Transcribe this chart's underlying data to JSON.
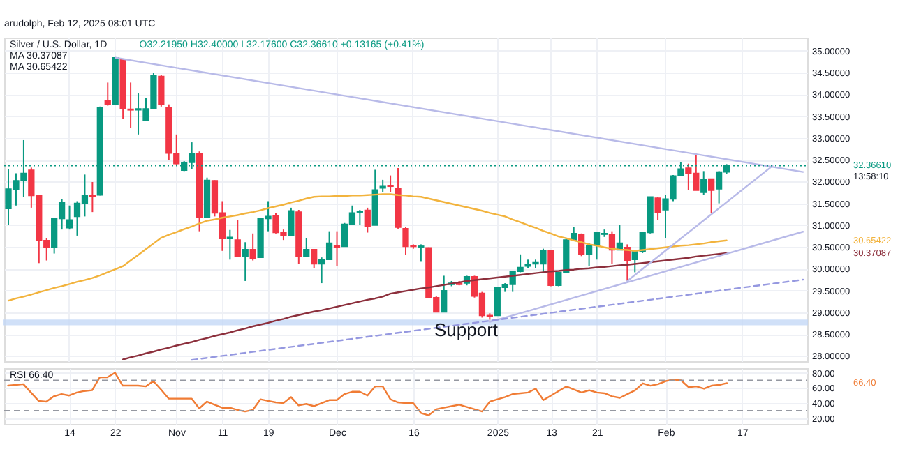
{
  "chart_data": [
    {
      "type": "candlestick",
      "title": "Silver / U.S. Dollar, 1D",
      "subtitle": "O32.21950 H32.40000 L32.17600 C32.36610 +0.13165 (+0.41%)",
      "categories": [
        null,
        null,
        null,
        null,
        null,
        null,
        null,
        null,
        null,
        null,
        null,
        null,
        null,
        null,
        null,
        null,
        null,
        null,
        null,
        null,
        null,
        null,
        null,
        null,
        null,
        null,
        null,
        null,
        null,
        null,
        null,
        null,
        null,
        null,
        null,
        null,
        null,
        null,
        null,
        null,
        null,
        null,
        null,
        null,
        null,
        null,
        null,
        null,
        null,
        null,
        null,
        null,
        null,
        null,
        null,
        null,
        null,
        null,
        null,
        null,
        null,
        null,
        null,
        null,
        null,
        null,
        null,
        null,
        null,
        null,
        null,
        null,
        null,
        null,
        null,
        null,
        null,
        null,
        null,
        null,
        null,
        null,
        null,
        null,
        null,
        null,
        null,
        null,
        null,
        null,
        null,
        null,
        null,
        null,
        null,
        null,
        null,
        null,
        null,
        null,
        null,
        null,
        null,
        null,
        null
      ],
      "ohlc": [
        [
          31.38,
          32.29,
          31.0,
          31.83
        ],
        [
          31.81,
          32.19,
          31.45,
          32.02
        ],
        [
          32.02,
          32.95,
          31.65,
          32.19
        ],
        [
          32.26,
          32.32,
          31.4,
          31.68
        ],
        [
          31.68,
          31.7,
          30.13,
          30.65
        ],
        [
          30.65,
          30.71,
          30.19,
          30.49
        ],
        [
          30.49,
          31.17,
          30.35,
          31.15
        ],
        [
          31.15,
          31.6,
          30.9,
          31.52
        ],
        [
          30.94,
          31.45,
          30.9,
          31.12
        ],
        [
          31.2,
          31.55,
          30.76,
          31.5
        ],
        [
          31.5,
          32.16,
          31.2,
          31.68
        ],
        [
          31.68,
          31.99,
          31.3,
          31.65
        ],
        [
          31.69,
          33.72,
          31.68,
          33.7
        ],
        [
          33.86,
          34.27,
          33.74,
          33.76
        ],
        [
          33.77,
          34.84,
          33.75,
          34.84
        ],
        [
          34.79,
          34.81,
          33.43,
          33.67
        ],
        [
          33.66,
          34.27,
          33.23,
          33.64
        ],
        [
          33.64,
          34.02,
          33.08,
          33.67
        ],
        [
          33.4,
          33.92,
          33.4,
          33.67
        ],
        [
          33.67,
          34.49,
          33.67,
          34.44
        ],
        [
          34.41,
          34.45,
          33.72,
          33.77
        ],
        [
          33.7,
          33.77,
          32.49,
          32.65
        ],
        [
          32.65,
          33.08,
          32.39,
          32.41
        ],
        [
          32.26,
          32.47,
          32.24,
          32.44
        ],
        [
          32.44,
          32.9,
          32.29,
          32.64
        ],
        [
          32.64,
          32.69,
          30.86,
          31.17
        ],
        [
          31.17,
          32.09,
          31.17,
          32.03
        ],
        [
          32.02,
          32.03,
          31.2,
          31.28
        ],
        [
          31.28,
          31.55,
          30.41,
          30.69
        ],
        [
          30.69,
          30.89,
          30.21,
          30.72
        ],
        [
          30.66,
          31.12,
          30.29,
          30.29
        ],
        [
          30.29,
          30.61,
          29.72,
          30.44
        ],
        [
          30.44,
          30.81,
          30.19,
          30.24
        ],
        [
          30.26,
          31.15,
          30.26,
          31.15
        ],
        [
          31.15,
          31.55,
          30.86,
          31.2
        ],
        [
          31.22,
          31.27,
          30.81,
          30.83
        ],
        [
          30.83,
          30.9,
          30.66,
          30.76
        ],
        [
          30.76,
          31.4,
          30.76,
          31.33
        ],
        [
          31.3,
          31.35,
          30.11,
          30.29
        ],
        [
          30.29,
          30.71,
          30.29,
          30.44
        ],
        [
          30.44,
          30.44,
          30.01,
          30.11
        ],
        [
          30.11,
          30.26,
          29.67,
          30.21
        ],
        [
          30.21,
          30.86,
          30.21,
          30.59
        ],
        [
          30.53,
          30.86,
          30.06,
          30.5
        ],
        [
          30.51,
          31.05,
          30.51,
          31.02
        ],
        [
          31.02,
          31.45,
          31.02,
          31.28
        ],
        [
          31.3,
          31.35,
          31.0,
          31.32
        ],
        [
          31.34,
          31.4,
          30.83,
          30.98
        ],
        [
          31.0,
          32.27,
          31.0,
          31.81
        ],
        [
          31.85,
          32.04,
          31.75,
          31.89
        ],
        [
          31.91,
          32.14,
          31.75,
          31.89
        ],
        [
          31.84,
          32.31,
          30.92,
          30.95
        ],
        [
          30.92,
          30.95,
          30.31,
          30.51
        ],
        [
          30.53,
          30.56,
          30.46,
          30.51
        ],
        [
          30.5,
          30.56,
          30.16,
          30.52
        ],
        [
          30.48,
          30.49,
          29.32,
          29.34
        ],
        [
          29.34,
          29.37,
          29.01,
          29.01
        ],
        [
          29.01,
          29.84,
          29.01,
          29.5
        ],
        [
          29.64,
          29.72,
          29.6,
          29.67
        ],
        [
          29.67,
          29.72,
          29.62,
          29.64
        ],
        [
          29.67,
          29.84,
          29.62,
          29.82
        ],
        [
          29.82,
          29.84,
          29.34,
          29.37
        ],
        [
          29.44,
          29.47,
          28.88,
          28.93
        ],
        [
          28.93,
          28.98,
          28.78,
          28.91
        ],
        [
          28.93,
          29.59,
          28.93,
          29.57
        ],
        [
          29.57,
          29.67,
          29.47,
          29.64
        ],
        [
          29.64,
          29.94,
          29.47,
          29.94
        ],
        [
          29.94,
          30.33,
          29.92,
          30.03
        ],
        [
          30.06,
          30.21,
          30.01,
          30.09
        ],
        [
          30.11,
          30.21,
          30.01,
          30.14
        ],
        [
          30.11,
          30.46,
          29.92,
          30.41
        ],
        [
          30.41,
          30.41,
          29.6,
          29.62
        ],
        [
          29.62,
          29.92,
          29.6,
          29.92
        ],
        [
          29.92,
          30.71,
          29.9,
          30.66
        ],
        [
          30.66,
          30.95,
          30.63,
          30.81
        ],
        [
          30.79,
          30.81,
          30.29,
          30.33
        ],
        [
          30.33,
          30.59,
          30.06,
          30.53
        ],
        [
          30.53,
          30.83,
          30.21,
          30.83
        ],
        [
          30.79,
          30.9,
          30.73,
          30.81
        ],
        [
          30.79,
          30.86,
          30.11,
          30.43
        ],
        [
          30.43,
          31.0,
          30.43,
          30.59
        ],
        [
          30.49,
          30.56,
          29.72,
          30.19
        ],
        [
          30.21,
          30.39,
          29.92,
          30.39
        ],
        [
          30.39,
          30.83,
          30.36,
          30.83
        ],
        [
          30.83,
          31.65,
          30.81,
          31.65
        ],
        [
          31.62,
          31.65,
          31.12,
          31.3
        ],
        [
          31.35,
          31.7,
          30.71,
          31.6
        ],
        [
          31.6,
          32.15,
          31.55,
          32.13
        ],
        [
          32.14,
          32.44,
          32.14,
          32.29
        ],
        [
          32.31,
          32.41,
          31.8,
          32.19
        ],
        [
          32.19,
          32.64,
          31.8,
          31.8
        ],
        [
          31.75,
          32.24,
          31.7,
          32.04
        ],
        [
          32.06,
          32.06,
          31.28,
          31.8
        ],
        [
          31.83,
          32.24,
          31.5,
          32.22
        ],
        [
          32.2195,
          32.4,
          32.176,
          32.3661
        ],
        null,
        null,
        null,
        null,
        null,
        null,
        null,
        null,
        null,
        null
      ],
      "colors": [
        "#089981",
        "#089981",
        "#089981",
        "#f23645",
        "#f23645",
        "#f23645",
        "#089981",
        "#089981",
        "#089981",
        "#089981",
        "#089981",
        "#f23645",
        "#089981",
        "#f23645",
        "#089981",
        "#f23645",
        "#f23645",
        "#089981",
        "#089981",
        "#089981",
        "#f23645",
        "#f23645",
        "#f23645",
        "#089981",
        "#089981",
        "#f23645",
        "#089981",
        "#f23645",
        "#f23645",
        "#089981",
        "#f23645",
        "#089981",
        "#f23645",
        "#089981",
        "#089981",
        "#f23645",
        "#f23645",
        "#089981",
        "#f23645",
        "#089981",
        "#f23645",
        "#089981",
        "#089981",
        "#f23645",
        "#089981",
        "#089981",
        "#089981",
        "#f23645",
        "#089981",
        "#089981",
        "#f23645",
        "#f23645",
        "#f23645",
        "#f23645",
        "#089981",
        "#f23645",
        "#f23645",
        "#089981",
        "#089981",
        "#f23645",
        "#089981",
        "#f23645",
        "#f23645",
        "#f23645",
        "#089981",
        "#089981",
        "#089981",
        "#089981",
        "#089981",
        "#089981",
        "#089981",
        "#f23645",
        "#089981",
        "#089981",
        "#089981",
        "#f23645",
        "#089981",
        "#089981",
        "#089981",
        "#f23645",
        "#089981",
        "#f23645",
        "#089981",
        "#089981",
        "#089981",
        "#f23645",
        "#089981",
        "#089981",
        "#089981",
        "#f23645",
        "#f23645",
        "#089981",
        "#f23645",
        "#089981",
        "#089981",
        null,
        null,
        null,
        null,
        null,
        null,
        null,
        null,
        null,
        null
      ],
      "series": [
        {
          "type": "line",
          "color": "#8c2f3c",
          "values": [
            null,
            null,
            null,
            null,
            null,
            null,
            null,
            null,
            null,
            null,
            null,
            null,
            null,
            null,
            null,
            27.92,
            27.97,
            28.01,
            28.06,
            28.1,
            28.15,
            28.19,
            28.24,
            28.28,
            28.32,
            28.37,
            28.41,
            28.46,
            28.5,
            28.54,
            28.59,
            28.63,
            28.68,
            28.72,
            28.76,
            28.81,
            28.85,
            28.9,
            28.94,
            28.98,
            29.02,
            29.05,
            29.09,
            29.13,
            29.17,
            29.21,
            29.25,
            29.29,
            29.32,
            29.36,
            29.43,
            29.46,
            29.49,
            29.52,
            29.55,
            29.57,
            29.6,
            29.63,
            29.66,
            29.69,
            29.72,
            29.74,
            29.76,
            29.78,
            29.8,
            29.82,
            29.84,
            29.86,
            29.88,
            29.9,
            29.92,
            29.94,
            29.95,
            29.97,
            29.98,
            30.0,
            30.01,
            30.03,
            30.04,
            30.06,
            30.08,
            30.09,
            30.11,
            30.13,
            30.15,
            30.17,
            30.19,
            30.21,
            30.23,
            30.25,
            30.28,
            30.3,
            30.32,
            30.34,
            30.36,
            null,
            null,
            null,
            null,
            null,
            null,
            null,
            null,
            null,
            null
          ]
        },
        {
          "type": "line",
          "color": "#f2b33d",
          "values": [
            29.27,
            29.32,
            29.36,
            29.41,
            29.46,
            29.51,
            29.56,
            29.6,
            29.65,
            29.7,
            29.74,
            29.79,
            29.85,
            29.92,
            29.99,
            30.06,
            30.19,
            30.32,
            30.45,
            30.58,
            30.71,
            30.78,
            30.84,
            30.91,
            30.97,
            31.04,
            31.1,
            31.13,
            31.17,
            31.2,
            31.23,
            31.27,
            31.3,
            31.34,
            31.39,
            31.43,
            31.47,
            31.52,
            31.56,
            31.61,
            31.65,
            31.66,
            31.66,
            31.67,
            31.67,
            31.68,
            31.68,
            31.69,
            31.7,
            31.71,
            31.71,
            31.69,
            31.68,
            31.66,
            31.65,
            31.61,
            31.57,
            31.53,
            31.49,
            31.45,
            31.41,
            31.37,
            31.33,
            31.28,
            31.24,
            31.2,
            31.13,
            31.07,
            31.0,
            30.94,
            30.87,
            30.81,
            30.74,
            30.7,
            30.65,
            30.61,
            30.56,
            30.53,
            30.49,
            30.46,
            30.44,
            30.43,
            30.41,
            30.43,
            30.45,
            30.47,
            30.49,
            30.51,
            30.53,
            30.54,
            30.56,
            30.58,
            30.61,
            30.63,
            30.65,
            null,
            null,
            null,
            null,
            null,
            null,
            null,
            null,
            null,
            null
          ]
        },
        {
          "type": "line",
          "color": "#b8bae8",
          "values": [
            null,
            null,
            null,
            null,
            null,
            null,
            null,
            null,
            null,
            null,
            null,
            null,
            null,
            null,
            34.84,
            null,
            null,
            null,
            null,
            null,
            null,
            null,
            null,
            null,
            null,
            null,
            null,
            null,
            null,
            null,
            null,
            null,
            null,
            null,
            null,
            null,
            null,
            null,
            null,
            null,
            null,
            null,
            null,
            null,
            null,
            null,
            null,
            null,
            null,
            null,
            null,
            null,
            null,
            null,
            null,
            null,
            null,
            null,
            null,
            null,
            null,
            null,
            null,
            null,
            null,
            null,
            null,
            null,
            null,
            null,
            null,
            null,
            null,
            null,
            null,
            null,
            null,
            null,
            null,
            null,
            null,
            null,
            null,
            null,
            null,
            null,
            null,
            null,
            null,
            null,
            null,
            null,
            null,
            null,
            null,
            null,
            null,
            null,
            null,
            null,
            null,
            null,
            null,
            null,
            32.22
          ]
        },
        {
          "type": "line",
          "color": "#b8bae8",
          "values": [
            null,
            null,
            null,
            null,
            null,
            null,
            null,
            null,
            null,
            null,
            null,
            null,
            null,
            null,
            null,
            null,
            null,
            null,
            null,
            null,
            null,
            null,
            null,
            null,
            null,
            null,
            null,
            null,
            null,
            null,
            null,
            null,
            null,
            null,
            null,
            null,
            null,
            null,
            null,
            null,
            null,
            null,
            null,
            null,
            null,
            null,
            null,
            null,
            null,
            null,
            null,
            null,
            null,
            null,
            null,
            null,
            null,
            null,
            null,
            null,
            null,
            null,
            null,
            null,
            null,
            null,
            null,
            null,
            null,
            null,
            null,
            null,
            null,
            null,
            null,
            null,
            null,
            null,
            null,
            null,
            null,
            29.72,
            null,
            null,
            null,
            null,
            null,
            null,
            null,
            null,
            null,
            null,
            null,
            null,
            null,
            null,
            null,
            null,
            null,
            null,
            32.36,
            null,
            null,
            null,
            null
          ]
        },
        {
          "type": "line",
          "color": "#b8bae8",
          "values": [
            null,
            null,
            null,
            null,
            null,
            null,
            null,
            null,
            null,
            null,
            null,
            null,
            null,
            null,
            null,
            null,
            null,
            null,
            null,
            null,
            null,
            null,
            null,
            null,
            null,
            null,
            null,
            null,
            null,
            null,
            null,
            null,
            null,
            null,
            null,
            null,
            null,
            null,
            null,
            null,
            null,
            null,
            null,
            null,
            null,
            null,
            null,
            null,
            null,
            null,
            null,
            null,
            null,
            null,
            null,
            null,
            null,
            null,
            null,
            null,
            null,
            null,
            null,
            28.78,
            null,
            null,
            null,
            null,
            null,
            null,
            null,
            null,
            null,
            null,
            null,
            null,
            null,
            null,
            null,
            null,
            null,
            null,
            null,
            null,
            null,
            null,
            null,
            null,
            null,
            null,
            null,
            null,
            null,
            null,
            null,
            null,
            null,
            null,
            null,
            null,
            null,
            null,
            null,
            null,
            30.85
          ]
        },
        {
          "type": "line",
          "color": "#9598e0",
          "line_style": "dashed",
          "values": [
            null,
            null,
            null,
            null,
            null,
            null,
            null,
            null,
            null,
            null,
            null,
            null,
            null,
            null,
            null,
            null,
            null,
            null,
            null,
            null,
            null,
            null,
            null,
            null,
            27.91,
            null,
            null,
            null,
            null,
            null,
            null,
            null,
            null,
            null,
            null,
            null,
            null,
            null,
            null,
            null,
            null,
            null,
            null,
            null,
            null,
            null,
            null,
            null,
            null,
            null,
            null,
            null,
            null,
            null,
            null,
            null,
            null,
            null,
            null,
            null,
            null,
            null,
            null,
            null,
            null,
            null,
            null,
            null,
            null,
            null,
            null,
            null,
            null,
            null,
            null,
            null,
            null,
            null,
            null,
            null,
            null,
            null,
            null,
            null,
            null,
            null,
            null,
            null,
            null,
            null,
            null,
            null,
            null,
            null,
            null,
            null,
            null,
            null,
            null,
            null,
            null,
            null,
            null,
            null,
            29.75
          ]
        }
      ],
      "ylim": [
        27.88,
        35.3
      ],
      "yticks": [
        {
          "value": 28,
          "label": "28.00000"
        },
        {
          "value": 28.5,
          "label": "28.50000"
        },
        {
          "value": 29,
          "label": "29.00000"
        },
        {
          "value": 29.5,
          "label": "29.50000"
        },
        {
          "value": 30,
          "label": "30.00000"
        },
        {
          "value": 30.5,
          "label": "30.50000"
        },
        {
          "value": 31,
          "label": "31.00000"
        },
        {
          "value": 31.5,
          "label": "31.50000"
        },
        {
          "value": 32,
          "label": "32.00000"
        },
        {
          "value": 32.5,
          "label": "32.50000"
        },
        {
          "value": 33,
          "label": "33.00000"
        },
        {
          "value": 33.5,
          "label": "33.50000"
        },
        {
          "value": 34,
          "label": "34.00000"
        },
        {
          "value": 34.5,
          "label": "34.50000"
        },
        {
          "value": 35,
          "label": "35.00000"
        }
      ],
      "bands": [
        {
          "axis": "y",
          "from": 28.72,
          "to": 28.82,
          "color": "#c5d9f7"
        }
      ],
      "ref_lines": [
        {
          "axis": "y",
          "value": 32.3661,
          "label": "32.36610",
          "color": "#089981",
          "line_style": "dotted"
        }
      ],
      "annotations": [
        "arudolph, Feb 12, 2025 08:01 UTC",
        "MA 30.37087",
        "MA 30.65422",
        "13:58:10",
        "Support",
        "30.65422",
        "30.37087"
      ],
      "grid": true,
      "tick_labels": "y"
    },
    {
      "type": "line",
      "categories": [
        null,
        null,
        null,
        null,
        null,
        null,
        null,
        null,
        "14",
        null,
        null,
        null,
        null,
        null,
        "22",
        null,
        null,
        null,
        null,
        null,
        null,
        null,
        "Nov",
        null,
        null,
        null,
        null,
        null,
        "11",
        null,
        null,
        null,
        null,
        null,
        "19",
        null,
        null,
        null,
        null,
        null,
        null,
        null,
        null,
        "Dec",
        null,
        null,
        null,
        null,
        null,
        null,
        null,
        null,
        null,
        "16",
        null,
        null,
        null,
        null,
        null,
        null,
        null,
        null,
        null,
        null,
        "2025",
        null,
        null,
        null,
        null,
        null,
        null,
        "13",
        null,
        null,
        null,
        null,
        null,
        "21",
        null,
        null,
        null,
        null,
        null,
        null,
        null,
        null,
        "Feb",
        null,
        null,
        null,
        null,
        null,
        null,
        null,
        null,
        null,
        "17",
        null,
        null,
        null,
        null,
        null,
        null,
        null,
        null
      ],
      "series": [
        {
          "color": "#f07c35",
          "values": [
            63,
            64,
            65,
            54,
            43,
            42,
            49,
            52,
            50,
            54,
            56,
            57,
            74,
            74,
            80,
            63,
            63,
            63,
            62,
            69,
            58,
            46,
            46,
            46,
            46,
            33,
            42,
            38,
            34,
            34,
            31,
            29,
            31,
            45,
            43,
            41,
            40,
            48,
            37,
            39,
            36,
            40,
            44,
            44,
            52,
            55,
            55,
            50,
            62,
            62,
            45,
            41,
            40,
            40,
            27,
            24,
            32,
            34,
            36,
            38,
            35,
            32,
            29,
            42,
            45,
            48,
            52,
            53,
            54,
            59,
            44,
            50,
            56,
            62,
            58,
            54,
            57,
            54,
            53,
            49,
            47,
            52,
            57,
            66,
            63,
            65,
            69,
            71,
            70,
            61,
            62,
            59,
            63,
            64,
            66.4,
            null,
            null,
            null,
            null,
            null,
            null,
            null,
            null,
            null,
            null
          ]
        }
      ],
      "ylim": [
        12.6,
        86
      ],
      "yticks": [
        {
          "value": 20,
          "label": "20.00"
        },
        {
          "value": 40,
          "label": "40.00"
        },
        {
          "value": 60,
          "label": "60.00"
        },
        {
          "value": 80,
          "label": "80.00"
        }
      ],
      "ref_lines": [
        {
          "axis": "y",
          "value": 70,
          "color": "#9598a1",
          "line_style": "dashed"
        },
        {
          "axis": "y",
          "value": 30,
          "color": "#9598a1",
          "line_style": "dashed"
        }
      ],
      "annotations": [
        "RSI 66.40",
        "66.40"
      ],
      "grid": true
    }
  ]
}
